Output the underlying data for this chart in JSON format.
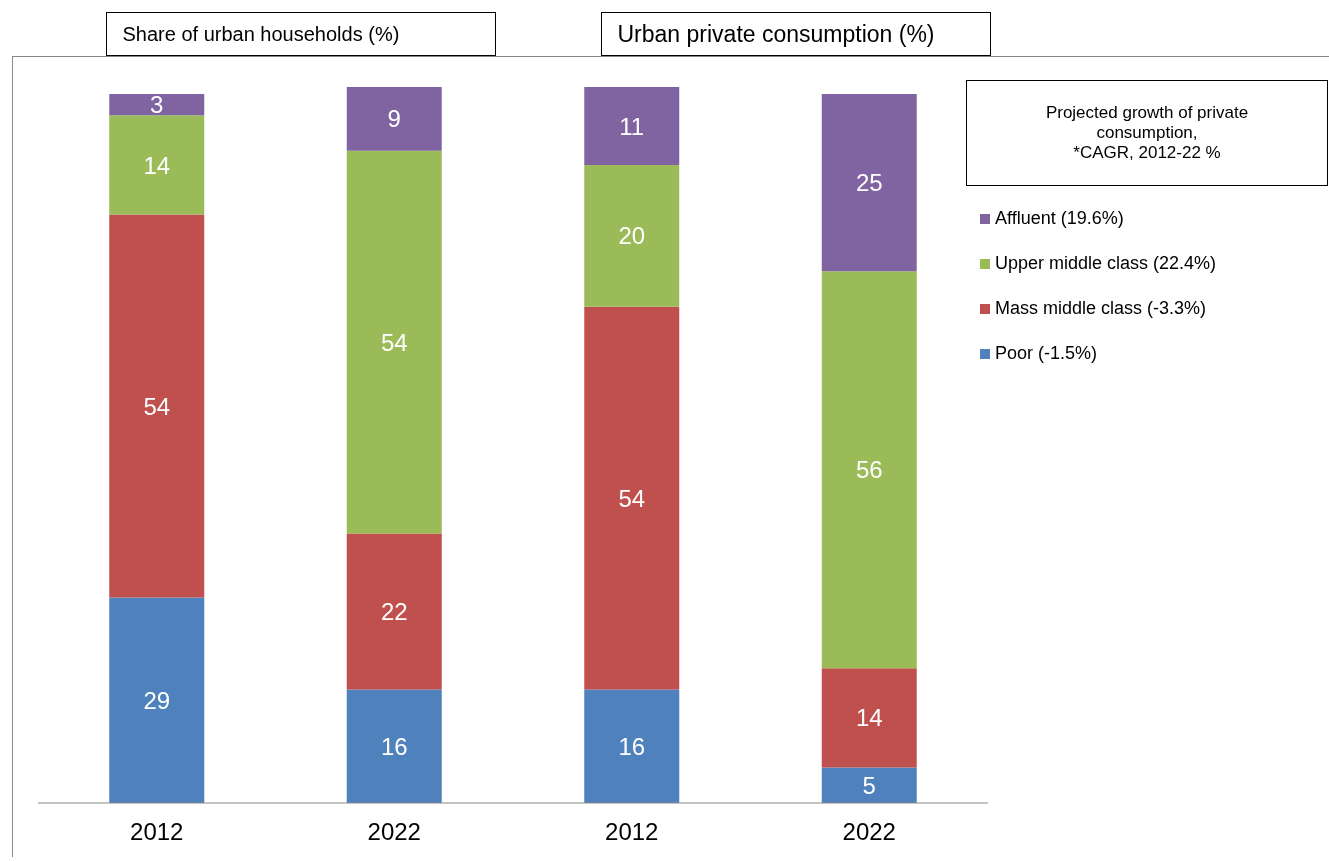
{
  "chart_data": {
    "type": "bar",
    "stacked": true,
    "data_labels": true,
    "legend": "right",
    "grid": false,
    "legend_title": "Projected growth of private consumption,\n*CAGR, 2012-22 %",
    "annotations": [
      "Share of urban households (%)",
      "Urban private consumption (%)"
    ],
    "categories": [
      "2012",
      "2022",
      "2012",
      "2022"
    ],
    "series": [
      {
        "name": "Poor (-1.5%)",
        "color": "#4f81bd",
        "values": [
          29,
          16,
          16,
          5
        ]
      },
      {
        "name": "Mass middle class (-3.3%)",
        "color": "#c0504d",
        "values": [
          54,
          22,
          54,
          14
        ]
      },
      {
        "name": "Upper middle class (22.4%)",
        "color": "#9bbb59",
        "values": [
          14,
          54,
          20,
          56
        ]
      },
      {
        "name": "Affluent (19.6%)",
        "color": "#8064a2",
        "values": [
          3,
          9,
          11,
          25
        ]
      }
    ]
  }
}
